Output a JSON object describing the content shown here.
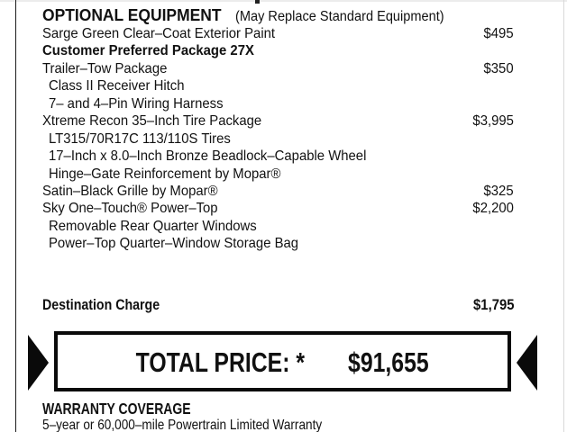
{
  "optional_equipment": {
    "title": "OPTIONAL EQUIPMENT",
    "subtitle": "(May Replace Standard Equipment)",
    "rows": [
      {
        "item": "Sarge Green Clear–Coat Exterior Paint",
        "price": "$495"
      },
      {
        "item": "Customer Preferred Package 27X",
        "price": ""
      },
      {
        "item": "Trailer–Tow Package",
        "price": "$350"
      },
      {
        "item": "Class II Receiver Hitch",
        "price": ""
      },
      {
        "item": "7– and 4–Pin Wiring Harness",
        "price": ""
      },
      {
        "item": "Xtreme Recon 35–Inch Tire Package",
        "price": "$3,995"
      },
      {
        "item": "LT315/70R17C 113/110S Tires",
        "price": ""
      },
      {
        "item": "17–Inch x 8.0–Inch Bronze Beadlock–Capable Wheel",
        "price": ""
      },
      {
        "item": "Hinge–Gate Reinforcement by Mopar®",
        "price": ""
      },
      {
        "item": "Satin–Black Grille by Mopar®",
        "price": "$325"
      },
      {
        "item": "Sky One–Touch® Power–Top",
        "price": "$2,200"
      },
      {
        "item": "Removable Rear Quarter Windows",
        "price": ""
      },
      {
        "item": "Power–Top Quarter–Window Storage Bag",
        "price": ""
      }
    ]
  },
  "destination": {
    "label": "Destination Charge",
    "price": "$1,795"
  },
  "total": {
    "label": "TOTAL PRICE: *",
    "value": "$91,655"
  },
  "warranty": {
    "title": "WARRANTY COVERAGE",
    "line1": "5–year or 60,000–mile Powertrain Limited Warranty"
  },
  "icons": {
    "left_arrow": "right-pointing-black-triangle",
    "right_arrow": "left-pointing-black-triangle"
  },
  "colors": {
    "text": "#111111",
    "background": "#ffffff",
    "box_border": "#0a0a0a"
  }
}
